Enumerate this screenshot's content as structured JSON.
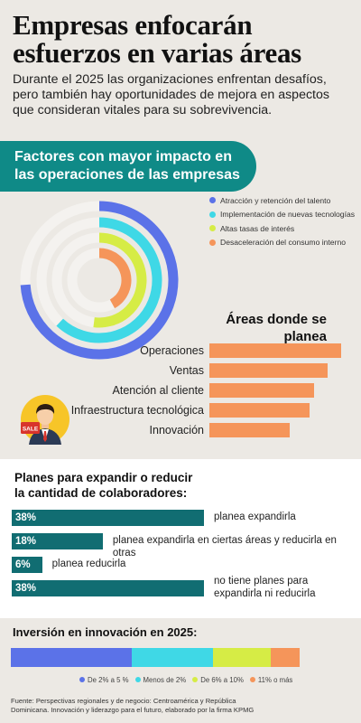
{
  "header": {
    "title_line1": "Empresas enfocarán",
    "title_line2": "esfuerzos en varias áreas",
    "subtitle_line1": "Durante el 2025 las organizaciones enfrentan desafíos,",
    "subtitle_line2": "pero también hay oportunidades de mejora en aspectos",
    "subtitle_line3": "que consideran vitales para su sobrevivencia."
  },
  "colors": {
    "teal_banner": "#0f8a87",
    "blue": "#5b72e8",
    "cyan": "#3fd8e6",
    "lime": "#d6ec45",
    "orange": "#f5955a",
    "ring_track": "#f4f2ef",
    "dark_teal": "#116d72",
    "white_section": "#ffffff"
  },
  "factors": {
    "banner_line1": "Factores con mayor impacto en",
    "banner_line2": "las operaciones de las empresas"
  },
  "chart_data": [
    {
      "type": "radial_bar",
      "title": "Factores con mayor impacto en las operaciones de las empresas",
      "categories": [
        "Atracción y retención del talento",
        "Implementación de nuevas tecnologías",
        "Altas tasas de interés",
        "Desaceleración del consumo interno"
      ],
      "series": [
        {
          "name": "Atracción y retención del talento",
          "value": 0.74,
          "color": "#5b72e8"
        },
        {
          "name": "Implementación de nuevas tecnologías",
          "value": 0.62,
          "color": "#3fd8e6"
        },
        {
          "name": "Altas tasas de interés",
          "value": 0.52,
          "color": "#d6ec45"
        },
        {
          "name": "Desaceleración del consumo interno",
          "value": 0.42,
          "color": "#f5955a"
        }
      ],
      "legend_position": "top-right"
    },
    {
      "type": "bar",
      "orientation": "horizontal",
      "title": "Áreas donde se planea reclutar talento:",
      "categories": [
        "Operaciones",
        "Ventas",
        "Atención al cliente",
        "Infraestructura tecnológica",
        "Innovación"
      ],
      "values": [
        148,
        133,
        118,
        113,
        90
      ],
      "xlim": [
        0,
        150
      ],
      "color": "#f5955a"
    },
    {
      "type": "bar",
      "orientation": "horizontal",
      "title": "Planes para expandir o reducir la cantidad de colaboradores:",
      "categories": [
        "planea expandirla",
        "planea expandirla en ciertas áreas y reducirla en otras",
        "planea reducirla",
        "no tiene planes para expandirla ni reducirla"
      ],
      "values": [
        38,
        18,
        6,
        38
      ],
      "labels": [
        "38%",
        "18%",
        "6%",
        "38%"
      ],
      "color": "#116d72"
    },
    {
      "type": "bar",
      "orientation": "stacked-horizontal",
      "title": "Inversión en innovación en 2025:",
      "categories": [
        "De 2% a 5 %",
        "Menos de 2%",
        "De 6% a 10%",
        "11% o más"
      ],
      "values": [
        42,
        28,
        20,
        10
      ],
      "colors": [
        "#5b72e8",
        "#3fd8e6",
        "#d6ec45",
        "#f5955a"
      ]
    }
  ],
  "hire": {
    "title_line1": "Áreas donde se planea",
    "title_line2": "reclutar talento:"
  },
  "avatar": {
    "sign_text": "SALE"
  },
  "plans": {
    "title_line1": "Planes para expandir o reducir",
    "title_line2": "la cantidad de colaboradores:",
    "label4_line1": "no tiene planes para",
    "label4_line2": "expandirla ni reducirla"
  },
  "invest": {
    "title": "Inversión en innovación en 2025:"
  },
  "source": {
    "line1": "Fuente: Perspectivas regionales y de negocio: Centroamérica y República",
    "line2": "Dominicana. Innovación y liderazgo para el futuro, elaborado por la firma KPMG"
  }
}
